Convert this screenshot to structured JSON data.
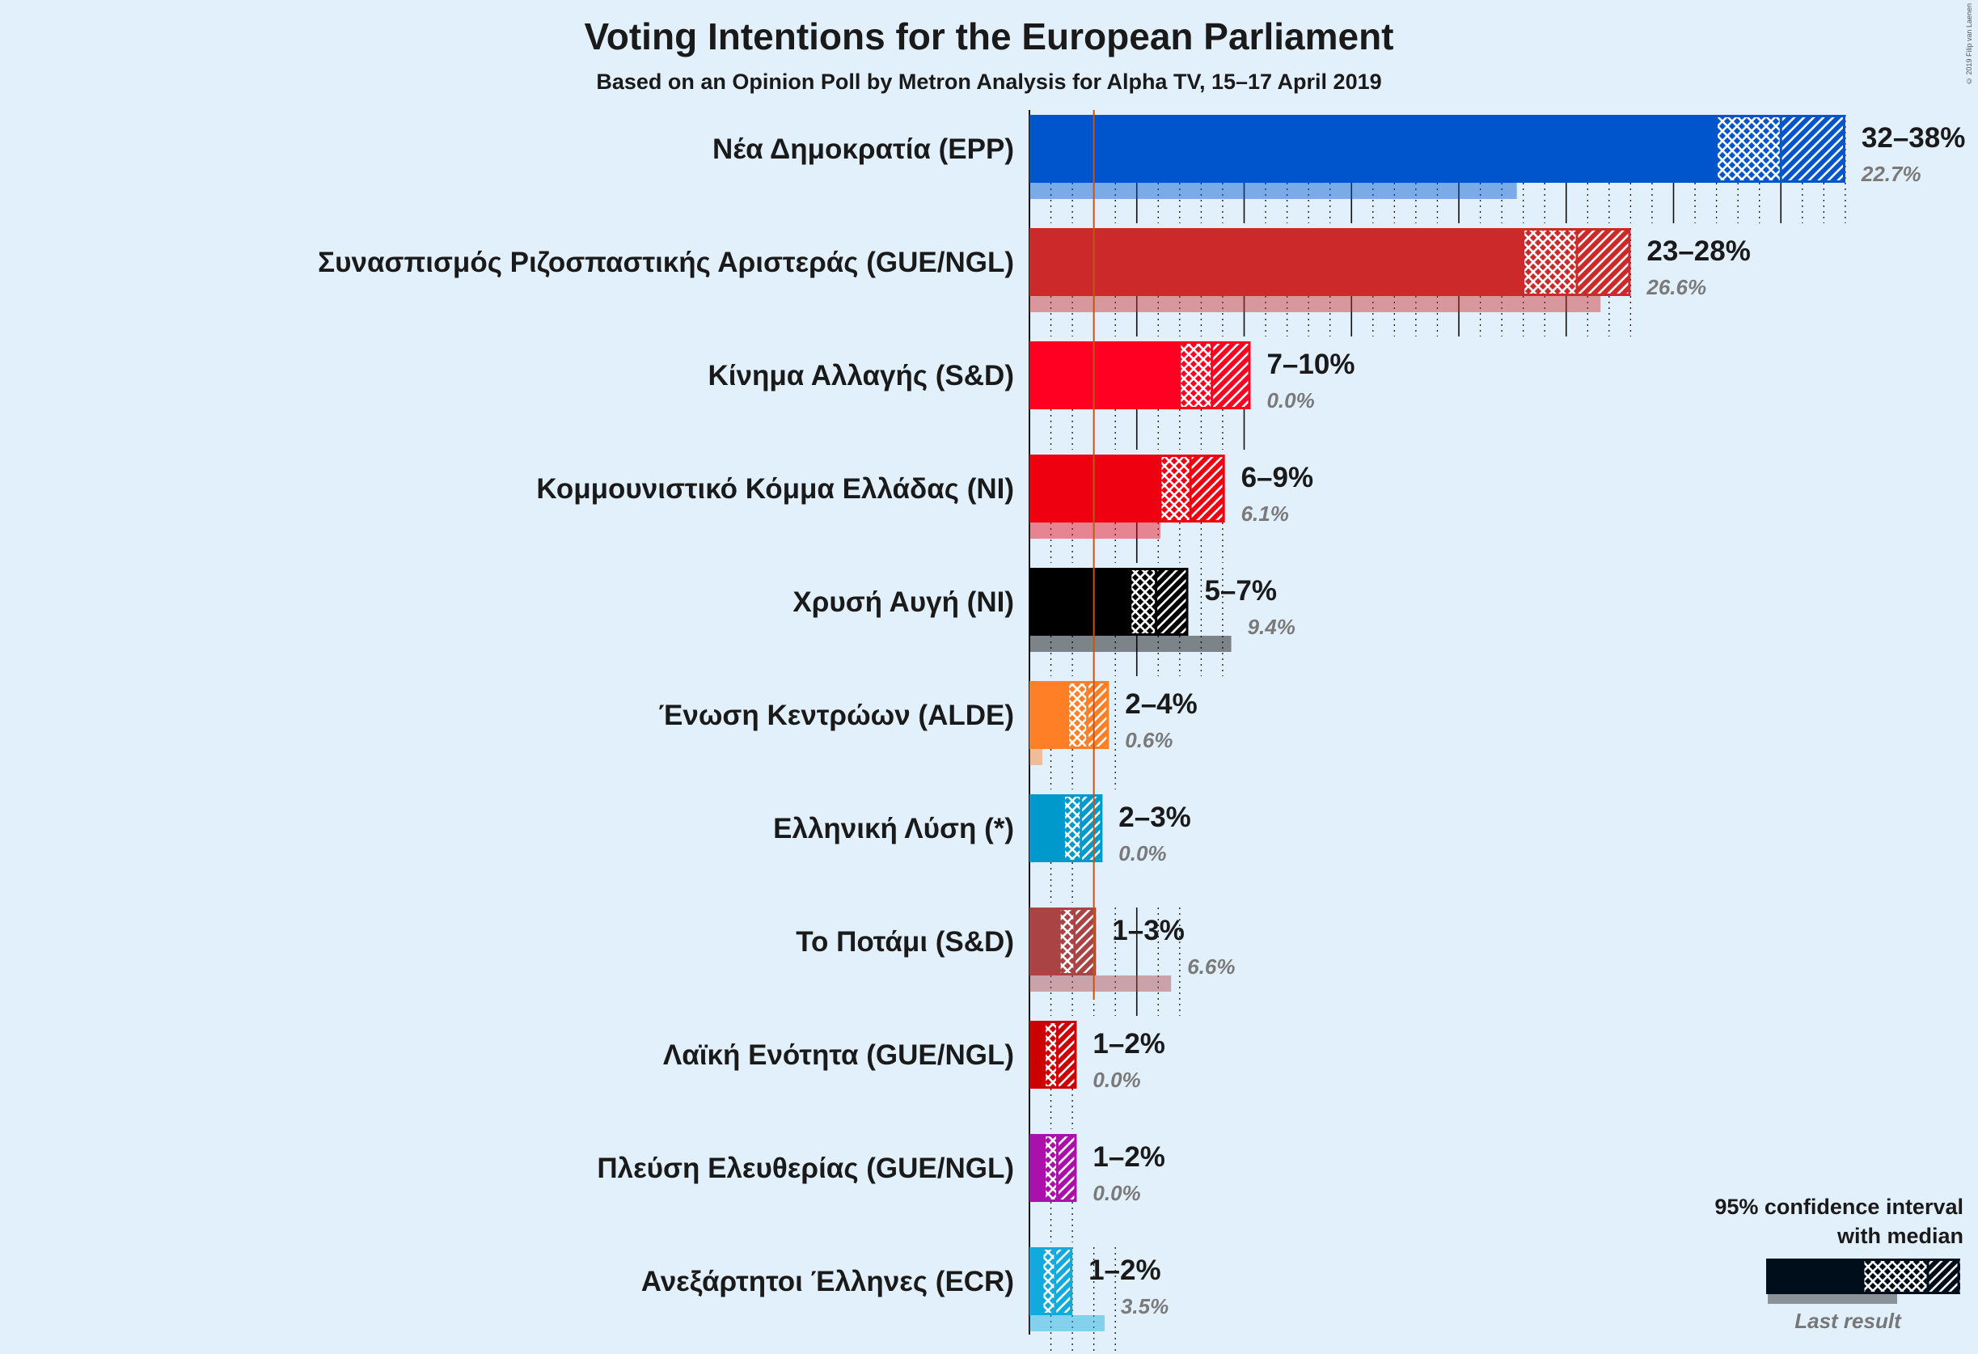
{
  "header": {
    "title": "Voting Intentions for the European Parliament",
    "subtitle": "Based on an Opinion Poll by Metron Analysis for Alpha TV, 15–17 April 2019",
    "copyright": "© 2019 Filip van Laenen"
  },
  "legend": {
    "title_line1": "95% confidence interval",
    "title_line2": "with median",
    "last_result_label": "Last result"
  },
  "chart_data": {
    "type": "bar",
    "orientation": "horizontal",
    "title": "Voting Intentions for the European Parliament",
    "subtitle": "Based on an Opinion Poll by Metron Analysis for Alpha TV, 15–17 April 2019",
    "threshold_line": 3,
    "parties": [
      {
        "name": "Νέα Δημοκρατία (EPP)",
        "color": "#0055cc",
        "low": 32,
        "median": 35,
        "high": 38,
        "range_label": "32–38%",
        "last": 22.7,
        "last_label": "22.7%"
      },
      {
        "name": "Συνασπισμός Ριζοσπαστικής Αριστεράς (GUE/NGL)",
        "color": "#cc2a2a",
        "low": 23,
        "median": 25.5,
        "high": 28,
        "range_label": "23–28%",
        "last": 26.6,
        "last_label": "26.6%"
      },
      {
        "name": "Κίνημα Αλλαγής (S&D)",
        "color": "#ff0022",
        "low": 7,
        "median": 8.5,
        "high": 10.3,
        "range_label": "7–10%",
        "last": 0.0,
        "last_label": "0.0%"
      },
      {
        "name": "Κομμουνιστικό Κόμμα Ελλάδας (NI)",
        "color": "#ee0011",
        "low": 6.1,
        "median": 7.5,
        "high": 9.1,
        "range_label": "6–9%",
        "last": 6.1,
        "last_label": "6.1%"
      },
      {
        "name": "Χρυσή Αυγή (NI)",
        "color": "#000000",
        "low": 4.7,
        "median": 5.9,
        "high": 7.4,
        "range_label": "5–7%",
        "last": 9.4,
        "last_label": "9.4%"
      },
      {
        "name": "Ένωση Κεντρώων (ALDE)",
        "color": "#ff7f27",
        "low": 1.8,
        "median": 2.7,
        "high": 3.7,
        "range_label": "2–4%",
        "last": 0.6,
        "last_label": "0.6%"
      },
      {
        "name": "Ελληνική Λύση (*)",
        "color": "#0099cc",
        "low": 1.6,
        "median": 2.4,
        "high": 3.4,
        "range_label": "2–3%",
        "last": 0.0,
        "last_label": "0.0%"
      },
      {
        "name": "Το Ποτάμι (S&D)",
        "color": "#aa4444",
        "low": 1.4,
        "median": 2.1,
        "high": 3.1,
        "range_label": "1–3%",
        "last": 6.6,
        "last_label": "6.6%"
      },
      {
        "name": "Λαϊκή Ενότητα (GUE/NGL)",
        "color": "#cc0000",
        "low": 0.7,
        "median": 1.3,
        "high": 2.2,
        "range_label": "1–2%",
        "last": 0.0,
        "last_label": "0.0%"
      },
      {
        "name": "Πλεύση Ελευθερίας (GUE/NGL)",
        "color": "#aa11aa",
        "low": 0.7,
        "median": 1.3,
        "high": 2.2,
        "range_label": "1–2%",
        "last": 0.0,
        "last_label": "0.0%"
      },
      {
        "name": "Ανεξάρτητοι Έλληνες (ECR)",
        "color": "#11aadd",
        "low": 0.6,
        "median": 1.2,
        "high": 2.0,
        "range_label": "1–2%",
        "last": 3.5,
        "last_label": "3.5%"
      }
    ]
  }
}
